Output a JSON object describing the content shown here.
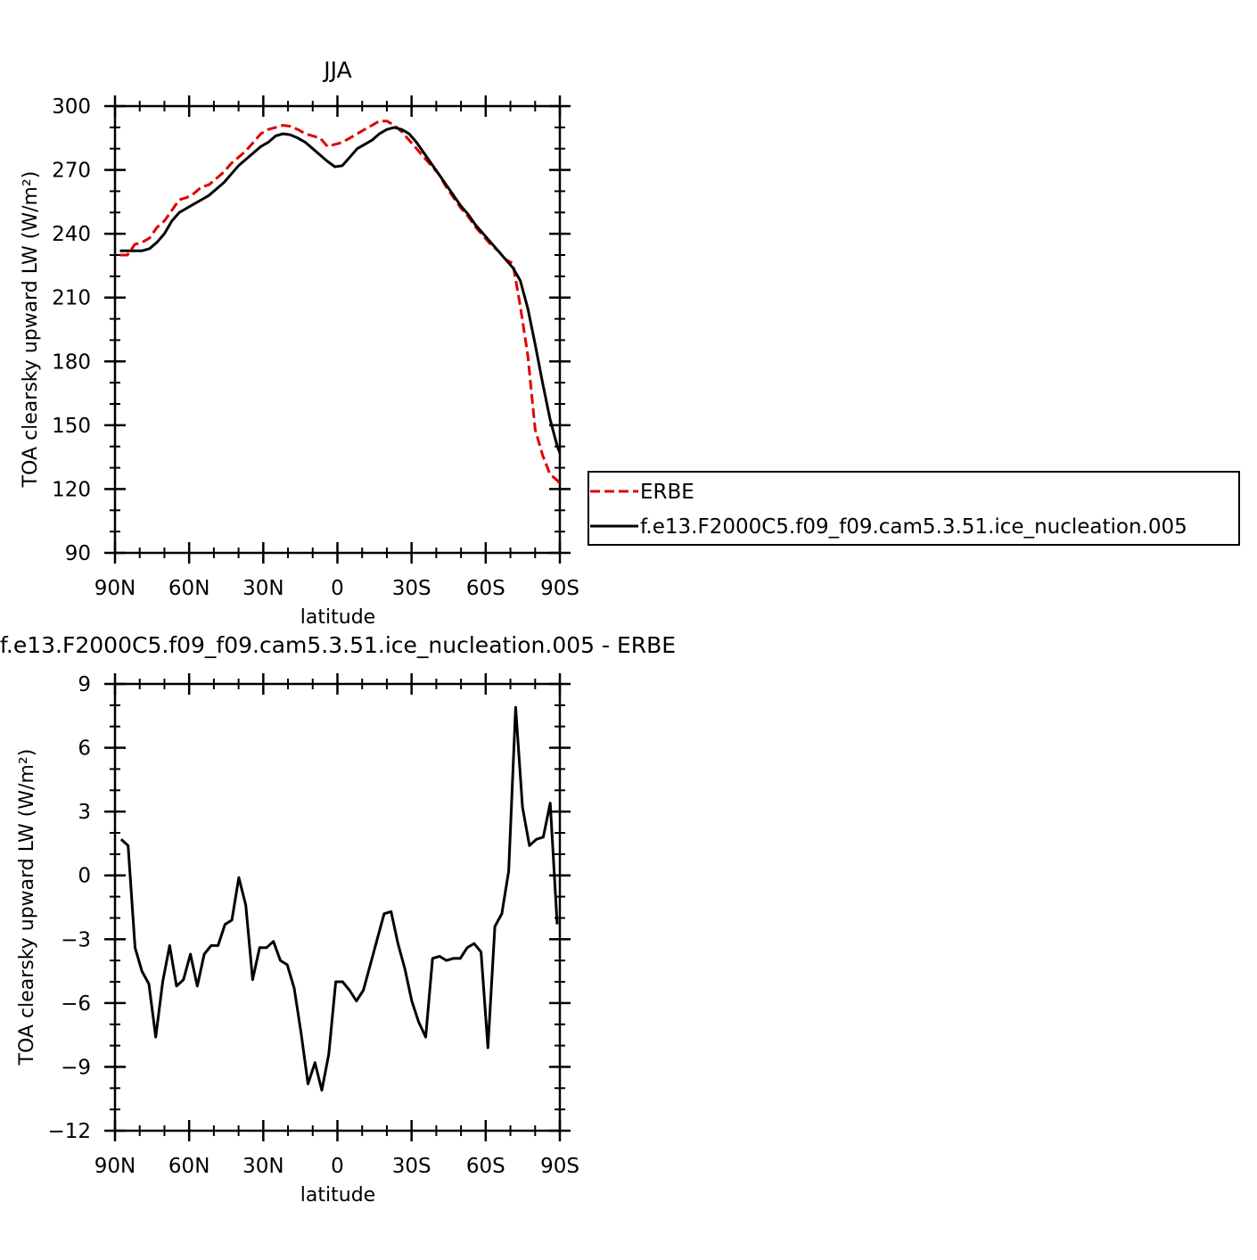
{
  "chart_data": [
    {
      "type": "line",
      "title": "JJA",
      "xlabel": "latitude",
      "ylabel": "TOA clearsky upward LW (W/m²)",
      "xlim": [
        -90,
        90
      ],
      "ylim": [
        90,
        300
      ],
      "xticks": [
        -90,
        -60,
        -30,
        0,
        30,
        60,
        90
      ],
      "xticklabels": [
        "90N",
        "60N",
        "30N",
        "0",
        "30S",
        "60S",
        "90S"
      ],
      "yticks": [
        90,
        120,
        150,
        180,
        210,
        240,
        270,
        300
      ],
      "yticklabels": [
        "90",
        "120",
        "150",
        "180",
        "210",
        "240",
        "270",
        "300"
      ],
      "grid": false,
      "legend_position": "right",
      "series": [
        {
          "name": "ERBE",
          "color": "#e00000",
          "dash": "dashed",
          "points": [
            [
              -88,
              230
            ],
            [
              -85,
              230
            ],
            [
              -82,
              235
            ],
            [
              -79,
              236
            ],
            [
              -76,
              238
            ],
            [
              -73,
              243
            ],
            [
              -70,
              246
            ],
            [
              -67,
              251
            ],
            [
              -64,
              256
            ],
            [
              -61,
              257
            ],
            [
              -58,
              259
            ],
            [
              -55,
              262
            ],
            [
              -52,
              263
            ],
            [
              -49,
              266
            ],
            [
              -46,
              269
            ],
            [
              -43,
              273
            ],
            [
              -40,
              276
            ],
            [
              -37,
              279
            ],
            [
              -34,
              283
            ],
            [
              -31,
              287
            ],
            [
              -28,
              289
            ],
            [
              -25,
              290
            ],
            [
              -22,
              291
            ],
            [
              -19,
              290.5
            ],
            [
              -16,
              289
            ],
            [
              -13,
              287
            ],
            [
              -10,
              286
            ],
            [
              -7,
              285
            ],
            [
              -4,
              281
            ],
            [
              -1,
              282
            ],
            [
              2,
              283
            ],
            [
              5,
              285
            ],
            [
              8,
              287
            ],
            [
              11,
              289
            ],
            [
              14,
              291
            ],
            [
              17,
              293
            ],
            [
              20,
              293
            ],
            [
              23,
              291
            ],
            [
              26,
              288
            ],
            [
              29,
              284
            ],
            [
              32,
              280
            ],
            [
              35,
              276
            ],
            [
              38,
              272
            ],
            [
              41,
              268
            ],
            [
              44,
              262
            ],
            [
              47,
              257
            ],
            [
              50,
              252
            ],
            [
              53,
              248
            ],
            [
              56,
              243
            ],
            [
              59,
              239
            ],
            [
              62,
              235
            ],
            [
              65,
              232
            ],
            [
              68,
              228
            ],
            [
              71,
              226
            ],
            [
              74,
              206
            ],
            [
              77,
              183
            ],
            [
              80,
              148
            ],
            [
              83,
              136
            ],
            [
              86,
              127
            ],
            [
              89,
              124
            ],
            [
              92,
              120
            ],
            [
              94,
              117
            ],
            [
              96,
              114
            ]
          ]
        },
        {
          "name": "f.e13.F2000C5.f09_f09.cam5.3.51.ice_nucleation.005",
          "color": "#000000",
          "dash": "solid",
          "points": [
            [
              -88,
              232
            ],
            [
              -85,
              232
            ],
            [
              -82,
              232
            ],
            [
              -79,
              232
            ],
            [
              -76,
              233
            ],
            [
              -73,
              236
            ],
            [
              -70,
              240
            ],
            [
              -67,
              246
            ],
            [
              -64,
              250
            ],
            [
              -61,
              252
            ],
            [
              -58,
              254
            ],
            [
              -55,
              256
            ],
            [
              -52,
              258
            ],
            [
              -49,
              261
            ],
            [
              -46,
              264
            ],
            [
              -43,
              268
            ],
            [
              -40,
              272
            ],
            [
              -37,
              275
            ],
            [
              -34,
              278
            ],
            [
              -31,
              281
            ],
            [
              -28,
              283
            ],
            [
              -25,
              286
            ],
            [
              -22,
              287
            ],
            [
              -19,
              286.5
            ],
            [
              -16,
              285
            ],
            [
              -13,
              283
            ],
            [
              -10,
              280
            ],
            [
              -7,
              277
            ],
            [
              -4,
              274
            ],
            [
              -1,
              271.5
            ],
            [
              2,
              272
            ],
            [
              5,
              276
            ],
            [
              8,
              280
            ],
            [
              11,
              282
            ],
            [
              14,
              284
            ],
            [
              17,
              287
            ],
            [
              20,
              289
            ],
            [
              23,
              290
            ],
            [
              26,
              289
            ],
            [
              29,
              287
            ],
            [
              32,
              283
            ],
            [
              35,
              278
            ],
            [
              38,
              273
            ],
            [
              41,
              268
            ],
            [
              44,
              263
            ],
            [
              47,
              258
            ],
            [
              50,
              253
            ],
            [
              53,
              249
            ],
            [
              56,
              244
            ],
            [
              59,
              240
            ],
            [
              62,
              236
            ],
            [
              65,
              232
            ],
            [
              68,
              228
            ],
            [
              71,
              224
            ],
            [
              74,
              218
            ],
            [
              77,
              205
            ],
            [
              80,
              188
            ],
            [
              83,
              170
            ],
            [
              86,
              153
            ],
            [
              89,
              140
            ],
            [
              92,
              131
            ],
            [
              95,
              127
            ],
            [
              98,
              124
            ],
            [
              100,
              115
            ]
          ]
        }
      ]
    },
    {
      "type": "line",
      "title": "f.e13.F2000C5.f09_f09.cam5.3.51.ice_nucleation.005 - ERBE",
      "xlabel": "latitude",
      "ylabel": "TOA clearsky upward LW (W/m²)",
      "xlim": [
        -90,
        90
      ],
      "ylim": [
        -12,
        9
      ],
      "xticks": [
        -90,
        -60,
        -30,
        0,
        30,
        60,
        90
      ],
      "xticklabels": [
        "90N",
        "60N",
        "30N",
        "0",
        "30S",
        "60S",
        "90S"
      ],
      "yticks": [
        -12,
        -9,
        -6,
        -3,
        0,
        3,
        6,
        9
      ],
      "yticklabels": [
        "−12",
        "−9",
        "−6",
        "−3",
        "0",
        "3",
        "6",
        "9"
      ],
      "grid": false,
      "series": [
        {
          "name": "",
          "color": "#000000",
          "dash": "solid",
          "points": [
            [
              -87.5,
              1.7
            ],
            [
              -84.7,
              1.4
            ],
            [
              -81.9,
              -3.4
            ],
            [
              -79.1,
              -4.5
            ],
            [
              -76.3,
              -5.1
            ],
            [
              -73.5,
              -7.6
            ],
            [
              -70.7,
              -5.0
            ],
            [
              -67.9,
              -3.3
            ],
            [
              -65.1,
              -5.2
            ],
            [
              -62.3,
              -4.9
            ],
            [
              -59.5,
              -3.7
            ],
            [
              -56.7,
              -5.2
            ],
            [
              -53.9,
              -3.7
            ],
            [
              -51.1,
              -3.3
            ],
            [
              -48.3,
              -3.3
            ],
            [
              -45.5,
              -2.3
            ],
            [
              -42.7,
              -2.1
            ],
            [
              -39.9,
              -0.1
            ],
            [
              -37.1,
              -1.4
            ],
            [
              -34.3,
              -4.9
            ],
            [
              -31.5,
              -3.4
            ],
            [
              -28.7,
              -3.4
            ],
            [
              -25.9,
              -3.1
            ],
            [
              -23.1,
              -4.0
            ],
            [
              -20.3,
              -4.2
            ],
            [
              -17.5,
              -5.3
            ],
            [
              -14.7,
              -7.4
            ],
            [
              -11.9,
              -9.8
            ],
            [
              -9.1,
              -8.8
            ],
            [
              -6.3,
              -10.1
            ],
            [
              -3.5,
              -8.4
            ],
            [
              -0.7,
              -5.0
            ],
            [
              2.1,
              -5.0
            ],
            [
              4.9,
              -5.4
            ],
            [
              7.7,
              -5.9
            ],
            [
              10.5,
              -5.4
            ],
            [
              13.3,
              -4.2
            ],
            [
              16.1,
              -3.0
            ],
            [
              18.9,
              -1.8
            ],
            [
              21.7,
              -1.7
            ],
            [
              24.5,
              -3.2
            ],
            [
              27.3,
              -4.4
            ],
            [
              30.1,
              -5.9
            ],
            [
              32.9,
              -6.9
            ],
            [
              35.7,
              -7.6
            ],
            [
              38.5,
              -3.9
            ],
            [
              41.3,
              -3.8
            ],
            [
              44.1,
              -4.0
            ],
            [
              46.9,
              -3.9
            ],
            [
              49.7,
              -3.9
            ],
            [
              52.5,
              -3.4
            ],
            [
              55.3,
              -3.2
            ],
            [
              58.1,
              -3.6
            ],
            [
              60.9,
              -8.1
            ],
            [
              63.7,
              -2.4
            ],
            [
              66.5,
              -1.8
            ],
            [
              69.3,
              0.2
            ],
            [
              72.1,
              7.9
            ],
            [
              74.9,
              3.2
            ],
            [
              77.7,
              1.4
            ],
            [
              80.5,
              1.7
            ],
            [
              83.3,
              1.8
            ],
            [
              86.1,
              3.4
            ],
            [
              88.9,
              -2.3
            ]
          ]
        }
      ]
    }
  ]
}
